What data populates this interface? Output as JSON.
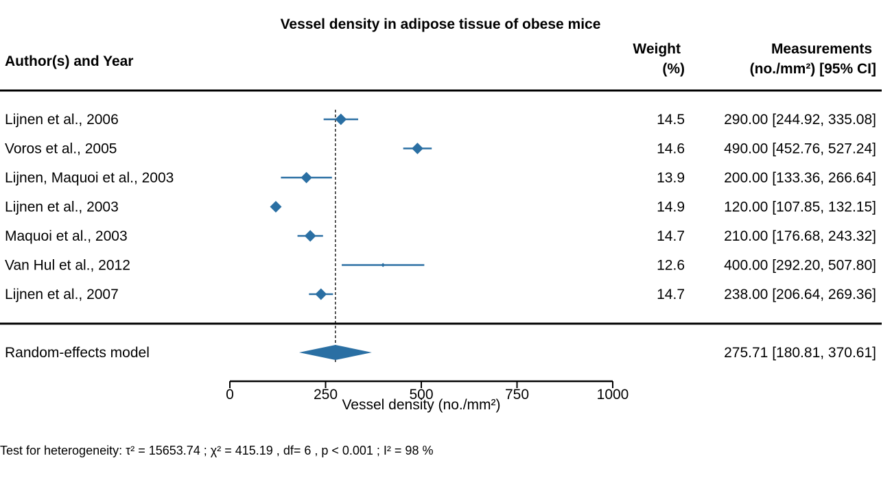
{
  "chart_data": {
    "type": "forest",
    "title": "Vessel density in adipose tissue of obese mice",
    "columns": {
      "study": "Author(s) and Year",
      "weight": [
        "Weight",
        "(%)"
      ],
      "measurement": [
        "Measurements",
        "(no./mm²) [95% CI]"
      ]
    },
    "studies": [
      {
        "label": "Lijnen et al., 2006",
        "weight": "14.5",
        "estimate": 290.0,
        "ci": [
          244.92,
          335.08
        ],
        "text": "290.00 [244.92, 335.08]"
      },
      {
        "label": "Voros et al., 2005",
        "weight": "14.6",
        "estimate": 490.0,
        "ci": [
          452.76,
          527.24
        ],
        "text": "490.00 [452.76, 527.24]"
      },
      {
        "label": "Lijnen, Maquoi et al., 2003",
        "weight": "13.9",
        "estimate": 200.0,
        "ci": [
          133.36,
          266.64
        ],
        "text": "200.00 [133.36, 266.64]"
      },
      {
        "label": "Lijnen et al., 2003",
        "weight": "14.9",
        "estimate": 120.0,
        "ci": [
          107.85,
          132.15
        ],
        "text": "120.00 [107.85, 132.15]"
      },
      {
        "label": "Maquoi et al., 2003",
        "weight": "14.7",
        "estimate": 210.0,
        "ci": [
          176.68,
          243.32
        ],
        "text": "210.00 [176.68, 243.32]"
      },
      {
        "label": "Van Hul et al., 2012",
        "weight": "12.6",
        "estimate": 400.0,
        "ci": [
          292.2,
          507.8
        ],
        "text": "400.00 [292.20, 507.80]"
      },
      {
        "label": "Lijnen et al., 2007",
        "weight": "14.7",
        "estimate": 238.0,
        "ci": [
          206.64,
          269.36
        ],
        "text": "238.00 [206.64, 269.36]"
      }
    ],
    "summary": {
      "label": "Random-effects model",
      "estimate": 275.71,
      "ci": [
        180.81,
        370.61
      ],
      "text": "275.71 [180.81, 370.61]"
    },
    "xaxis": {
      "range": [
        0,
        1000
      ],
      "ticks": [
        0,
        250,
        500,
        750,
        1000
      ],
      "label": "Vessel density (no./mm²)"
    },
    "heterogeneity": "Test for heterogeneity:  τ² = 15653.74 ;  χ² = 415.19 , df= 6 ,  p < 0.001 ;  I² = 98 %",
    "colors": {
      "marker": "#2a6fa3",
      "text": "#000000"
    }
  }
}
